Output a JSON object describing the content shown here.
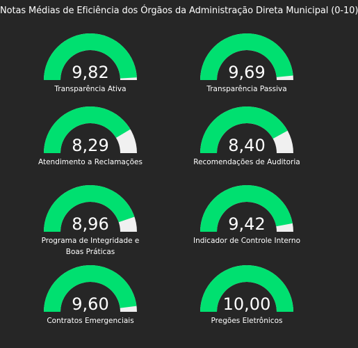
{
  "title": "Notas Médias de Eficiência dos Órgãos da Administração Direta Municipal (0-10)",
  "colors": {
    "background": "#262626",
    "fill": "#00e070",
    "track": "#f0f0f0",
    "text": "#ffffff"
  },
  "chart_data": {
    "type": "gauge",
    "title": "Notas Médias de Eficiência dos Órgãos da Administração Direta Municipal (0-10)",
    "min": 0,
    "max": 10,
    "gauges": [
      {
        "label": "Transparência Ativa",
        "value": 9.82,
        "display": "9,82"
      },
      {
        "label": "Transparência Passiva",
        "value": 9.69,
        "display": "9,69"
      },
      {
        "label": "Atendimento a Reclamações",
        "value": 8.29,
        "display": "8,29"
      },
      {
        "label": "Recomendações de Auditoria",
        "value": 8.4,
        "display": "8,40"
      },
      {
        "label": "Programa de Integridade e\nBoas Práticas",
        "value": 8.96,
        "display": "8,96"
      },
      {
        "label": "Indicador de Controle Interno",
        "value": 9.42,
        "display": "9,42"
      },
      {
        "label": "Contratos Emergenciais",
        "value": 9.6,
        "display": "9,60"
      },
      {
        "label": "Pregões Eletrônicos",
        "value": 10.0,
        "display": "10,00"
      }
    ]
  }
}
